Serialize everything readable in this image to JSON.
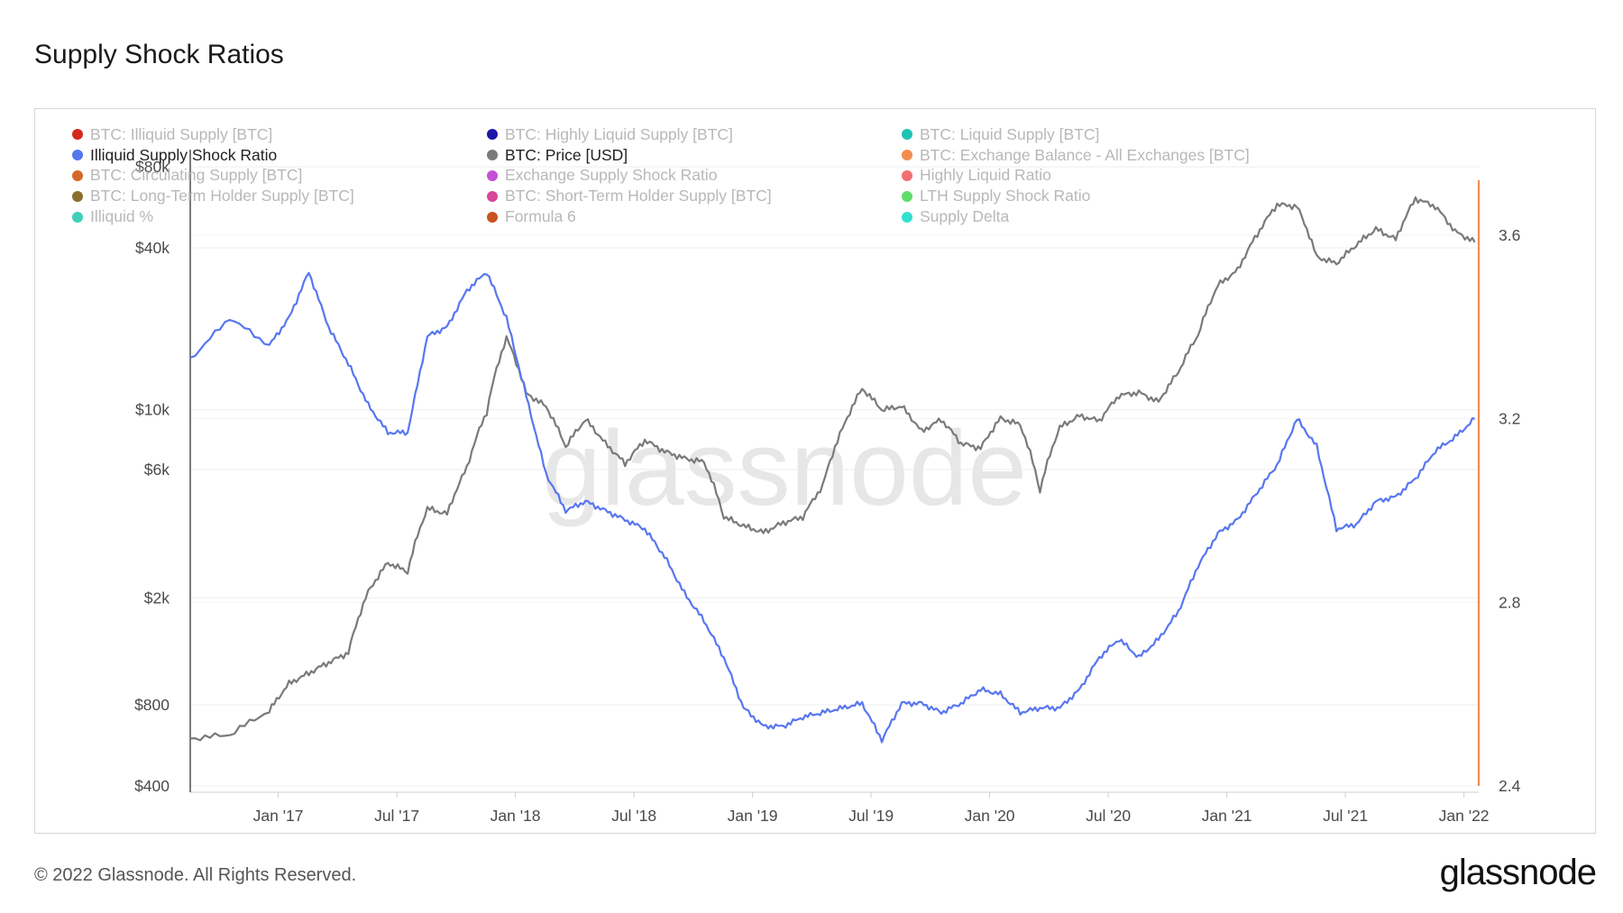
{
  "title": "Supply Shock Ratios",
  "footer": {
    "copyright": "© 2022 Glassnode. All Rights Reserved.",
    "logo": "glassnode"
  },
  "watermark": "glassnode",
  "legend": [
    {
      "label": "BTC: Illiquid Supply [BTC]",
      "color": "#d42b1e",
      "active": false
    },
    {
      "label": "BTC: Highly Liquid Supply [BTC]",
      "color": "#1f15a8",
      "active": false
    },
    {
      "label": "BTC: Liquid Supply [BTC]",
      "color": "#1fc3b5",
      "active": false
    },
    {
      "label": "Illiquid Supply Shock Ratio",
      "color": "#5876f0",
      "active": true
    },
    {
      "label": "BTC: Price [USD]",
      "color": "#7a7a7a",
      "active": true
    },
    {
      "label": "BTC: Exchange Balance - All Exchanges [BTC]",
      "color": "#f28c4f",
      "active": false
    },
    {
      "label": "BTC: Circulating Supply [BTC]",
      "color": "#d4682a",
      "active": false
    },
    {
      "label": "Exchange Supply Shock Ratio",
      "color": "#c44fd6",
      "active": false
    },
    {
      "label": "Highly Liquid Ratio",
      "color": "#f07070",
      "active": false
    },
    {
      "label": "BTC: Long-Term Holder Supply [BTC]",
      "color": "#8a6f2a",
      "active": false
    },
    {
      "label": "BTC: Short-Term Holder Supply [BTC]",
      "color": "#d6489a",
      "active": false
    },
    {
      "label": "LTH Supply Shock Ratio",
      "color": "#5fdc6a",
      "active": false
    },
    {
      "label": "Illiquid %",
      "color": "#3fcfb8",
      "active": false
    },
    {
      "label": "Formula 6",
      "color": "#c9521f",
      "active": false
    },
    {
      "label": "Supply Delta",
      "color": "#33e0d0",
      "active": false
    }
  ],
  "chart_data": {
    "type": "line",
    "x_axis": {
      "ticks": [
        "Jan '17",
        "Jul '17",
        "Jan '18",
        "Jul '18",
        "Jan '19",
        "Jul '19",
        "Jan '20",
        "Jul '20",
        "Jan '21",
        "Jul '21",
        "Jan '22"
      ],
      "range": [
        "2016-08",
        "2022-01"
      ]
    },
    "y_left": {
      "scale": "log",
      "ticks": [
        "$400",
        "$800",
        "$2k",
        "$6k",
        "$10k",
        "$40k",
        "$80k"
      ],
      "tick_values": [
        400,
        800,
        2000,
        6000,
        10000,
        40000,
        80000
      ]
    },
    "y_right": {
      "scale": "linear",
      "ticks": [
        "2.4",
        "2.8",
        "3.2",
        "3.6"
      ],
      "tick_values": [
        2.4,
        2.8,
        3.2,
        3.6
      ],
      "range": [
        2.4,
        3.72
      ]
    },
    "series": [
      {
        "name": "BTC: Price [USD]",
        "axis": "left",
        "color": "#7a7a7a",
        "points": [
          [
            "2016-08",
            600
          ],
          [
            "2016-10",
            620
          ],
          [
            "2016-12",
            760
          ],
          [
            "2017-01",
            960
          ],
          [
            "2017-02",
            1050
          ],
          [
            "2017-03",
            1150
          ],
          [
            "2017-04",
            1250
          ],
          [
            "2017-05",
            2100
          ],
          [
            "2017-06",
            2700
          ],
          [
            "2017-07",
            2500
          ],
          [
            "2017-08",
            4300
          ],
          [
            "2017-09",
            4100
          ],
          [
            "2017-10",
            6100
          ],
          [
            "2017-11",
            9800
          ],
          [
            "2017-12",
            18500
          ],
          [
            "2018-01",
            11500
          ],
          [
            "2018-02",
            10300
          ],
          [
            "2018-03",
            7300
          ],
          [
            "2018-04",
            9200
          ],
          [
            "2018-05",
            7500
          ],
          [
            "2018-06",
            6300
          ],
          [
            "2018-07",
            7700
          ],
          [
            "2018-08",
            7000
          ],
          [
            "2018-09",
            6600
          ],
          [
            "2018-10",
            6400
          ],
          [
            "2018-11",
            4000
          ],
          [
            "2018-12",
            3700
          ],
          [
            "2019-01",
            3500
          ],
          [
            "2019-02",
            3800
          ],
          [
            "2019-03",
            4000
          ],
          [
            "2019-04",
            5200
          ],
          [
            "2019-05",
            8500
          ],
          [
            "2019-06",
            12000
          ],
          [
            "2019-07",
            10000
          ],
          [
            "2019-08",
            10300
          ],
          [
            "2019-09",
            8300
          ],
          [
            "2019-10",
            9200
          ],
          [
            "2019-11",
            7500
          ],
          [
            "2019-12",
            7200
          ],
          [
            "2020-01",
            9300
          ],
          [
            "2020-02",
            8800
          ],
          [
            "2020-03",
            5000
          ],
          [
            "2020-04",
            8600
          ],
          [
            "2020-05",
            9500
          ],
          [
            "2020-06",
            9100
          ],
          [
            "2020-07",
            11300
          ],
          [
            "2020-08",
            11600
          ],
          [
            "2020-09",
            10700
          ],
          [
            "2020-10",
            13800
          ],
          [
            "2020-11",
            19000
          ],
          [
            "2020-12",
            29000
          ],
          [
            "2021-01",
            33000
          ],
          [
            "2021-02",
            45000
          ],
          [
            "2021-03",
            58000
          ],
          [
            "2021-04",
            57000
          ],
          [
            "2021-05",
            37000
          ],
          [
            "2021-06",
            35000
          ],
          [
            "2021-07",
            41000
          ],
          [
            "2021-08",
            47000
          ],
          [
            "2021-09",
            43000
          ],
          [
            "2021-10",
            61000
          ],
          [
            "2021-11",
            57000
          ],
          [
            "2021-12",
            46000
          ],
          [
            "2022-01",
            42000
          ]
        ]
      },
      {
        "name": "Illiquid Supply Shock Ratio",
        "axis": "right",
        "color": "#5876f0",
        "points": [
          [
            "2016-08",
            3.33
          ],
          [
            "2016-10",
            3.42
          ],
          [
            "2016-12",
            3.36
          ],
          [
            "2017-01",
            3.42
          ],
          [
            "2017-02",
            3.52
          ],
          [
            "2017-03",
            3.4
          ],
          [
            "2017-04",
            3.32
          ],
          [
            "2017-05",
            3.23
          ],
          [
            "2017-06",
            3.17
          ],
          [
            "2017-07",
            3.17
          ],
          [
            "2017-08",
            3.38
          ],
          [
            "2017-09",
            3.4
          ],
          [
            "2017-10",
            3.48
          ],
          [
            "2017-11",
            3.52
          ],
          [
            "2017-12",
            3.42
          ],
          [
            "2018-01",
            3.25
          ],
          [
            "2018-02",
            3.08
          ],
          [
            "2018-03",
            3.0
          ],
          [
            "2018-04",
            3.02
          ],
          [
            "2018-05",
            3.0
          ],
          [
            "2018-06",
            2.98
          ],
          [
            "2018-07",
            2.96
          ],
          [
            "2018-08",
            2.9
          ],
          [
            "2018-09",
            2.82
          ],
          [
            "2018-10",
            2.76
          ],
          [
            "2018-11",
            2.68
          ],
          [
            "2018-12",
            2.57
          ],
          [
            "2019-01",
            2.53
          ],
          [
            "2019-02",
            2.53
          ],
          [
            "2019-03",
            2.55
          ],
          [
            "2019-04",
            2.56
          ],
          [
            "2019-05",
            2.57
          ],
          [
            "2019-06",
            2.58
          ],
          [
            "2019-07",
            2.5
          ],
          [
            "2019-08",
            2.58
          ],
          [
            "2019-09",
            2.58
          ],
          [
            "2019-10",
            2.56
          ],
          [
            "2019-11",
            2.58
          ],
          [
            "2019-12",
            2.61
          ],
          [
            "2020-01",
            2.6
          ],
          [
            "2020-02",
            2.56
          ],
          [
            "2020-03",
            2.57
          ],
          [
            "2020-04",
            2.57
          ],
          [
            "2020-05",
            2.61
          ],
          [
            "2020-06",
            2.68
          ],
          [
            "2020-07",
            2.72
          ],
          [
            "2020-08",
            2.68
          ],
          [
            "2020-09",
            2.72
          ],
          [
            "2020-10",
            2.78
          ],
          [
            "2020-11",
            2.88
          ],
          [
            "2020-12",
            2.95
          ],
          [
            "2021-01",
            2.98
          ],
          [
            "2021-02",
            3.04
          ],
          [
            "2021-03",
            3.1
          ],
          [
            "2021-04",
            3.2
          ],
          [
            "2021-05",
            3.14
          ],
          [
            "2021-06",
            2.96
          ],
          [
            "2021-07",
            2.97
          ],
          [
            "2021-08",
            3.02
          ],
          [
            "2021-09",
            3.03
          ],
          [
            "2021-10",
            3.07
          ],
          [
            "2021-11",
            3.13
          ],
          [
            "2021-12",
            3.16
          ],
          [
            "2022-01",
            3.2
          ]
        ]
      },
      {
        "name": "BTC: Exchange Balance - All Exchanges [BTC]",
        "axis": "right",
        "color": "#f28c4f",
        "points": [
          [
            "2022-01",
            3.72
          ],
          [
            "2022-01",
            2.4
          ]
        ]
      }
    ]
  }
}
